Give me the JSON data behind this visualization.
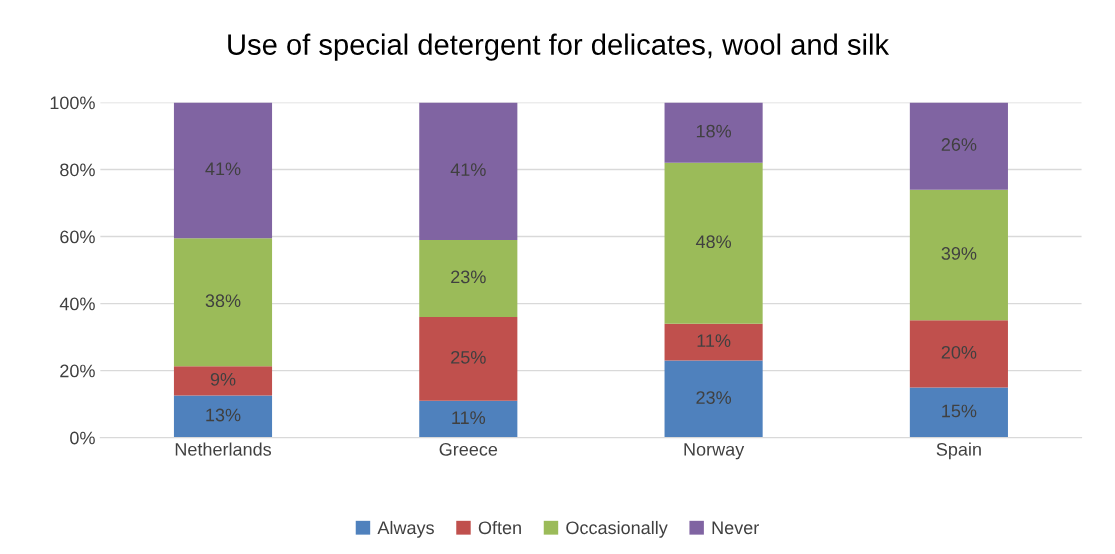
{
  "chart_data": {
    "type": "bar",
    "title": "Use of special detergent for delicates, wool and silk",
    "stacked": true,
    "categories": [
      "Netherlands",
      "Greece",
      "Norway",
      "Spain"
    ],
    "series": [
      {
        "name": "Always",
        "color": "#4f81bd",
        "values": [
          12.6,
          11,
          23,
          15
        ],
        "value_labels": [
          "13%",
          "11%",
          "23%",
          "15%"
        ]
      },
      {
        "name": "Often",
        "color": "#c0504d",
        "values": [
          8.7,
          25,
          11,
          20
        ],
        "value_labels": [
          "9%",
          "25%",
          "11%",
          "20%"
        ]
      },
      {
        "name": "Occasionally",
        "color": "#9bbb59",
        "values": [
          38.2,
          23,
          48,
          39
        ],
        "value_labels": [
          "38%",
          "23%",
          "48%",
          "39%"
        ]
      },
      {
        "name": "Never",
        "color": "#8064a2",
        "values": [
          40.5,
          41,
          18,
          26
        ],
        "value_labels": [
          "41%",
          "41%",
          "18%",
          "26%"
        ]
      }
    ],
    "ylim": [
      0,
      100
    ],
    "yticks": [
      {
        "value": 0,
        "label": "0%"
      },
      {
        "value": 20,
        "label": "20%"
      },
      {
        "value": 40,
        "label": "40%"
      },
      {
        "value": 60,
        "label": "60%"
      },
      {
        "value": 80,
        "label": "80%"
      },
      {
        "value": 100,
        "label": "100%"
      }
    ],
    "grid": "y",
    "legend": "bottom"
  }
}
